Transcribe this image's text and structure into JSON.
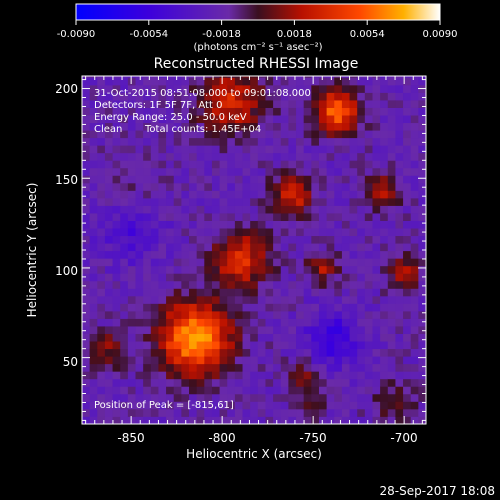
{
  "chart_data": {
    "type": "heatmap",
    "title": "Reconstructed RHESSI Image",
    "xlabel": "Heliocentric X (arcsec)",
    "ylabel": "Heliocentric Y (arcsec)",
    "xlim": [
      -877,
      -688
    ],
    "ylim": [
      13,
      207
    ],
    "x_ticks": [
      -850,
      -800,
      -750,
      -700
    ],
    "y_ticks": [
      50,
      100,
      150,
      200
    ],
    "colorbar": {
      "range": [
        -0.009,
        0.009
      ],
      "ticks": [
        "-0.0090",
        "-0.0054",
        "-0.0018",
        "0.0018",
        "0.0054",
        "0.0090"
      ],
      "unit_label": "(photons cm⁻² s⁻¹ asec⁻²)"
    },
    "sources": [
      {
        "x": -815,
        "y": 61,
        "peak": 0.009,
        "sigma": 14
      },
      {
        "x": -790,
        "y": 105,
        "peak": 0.0055,
        "sigma": 11
      },
      {
        "x": -762,
        "y": 140,
        "peak": 0.005,
        "sigma": 8
      },
      {
        "x": -737,
        "y": 187,
        "peak": 0.0072,
        "sigma": 9
      },
      {
        "x": -712,
        "y": 142,
        "peak": 0.004,
        "sigma": 7
      },
      {
        "x": -795,
        "y": 193,
        "peak": 0.005,
        "sigma": 13
      },
      {
        "x": -745,
        "y": 100,
        "peak": 0.0038,
        "sigma": 6
      },
      {
        "x": -700,
        "y": 97,
        "peak": 0.0035,
        "sigma": 7
      },
      {
        "x": -755,
        "y": 40,
        "peak": 0.003,
        "sigma": 7
      },
      {
        "x": -752,
        "y": 22,
        "peak": 0.0028,
        "sigma": 5
      },
      {
        "x": -865,
        "y": 55,
        "peak": 0.003,
        "sigma": 8
      },
      {
        "x": -705,
        "y": 25,
        "peak": 0.0025,
        "sigma": 8
      },
      {
        "x": -850,
        "y": 150,
        "peak": 0.0012,
        "sigma": 12
      },
      {
        "x": -740,
        "y": 60,
        "peak": -0.004,
        "sigma": 10
      },
      {
        "x": -850,
        "y": 120,
        "peak": -0.0022,
        "sigma": 12
      }
    ],
    "annotations": {
      "time_range": "31-Oct-2015 08:51:08.000 to 09:01:08.000",
      "detectors": "Detectors: 1F 5F 7F, Att 0",
      "energy_range": "Energy Range: 25.0 - 50.0 keV",
      "clean": "Clean",
      "total_counts": "Total counts: 1.45E+04",
      "peak_position": "Position of Peak = [-815,61]"
    }
  },
  "timestamp": "28-Sep-2017 18:08"
}
